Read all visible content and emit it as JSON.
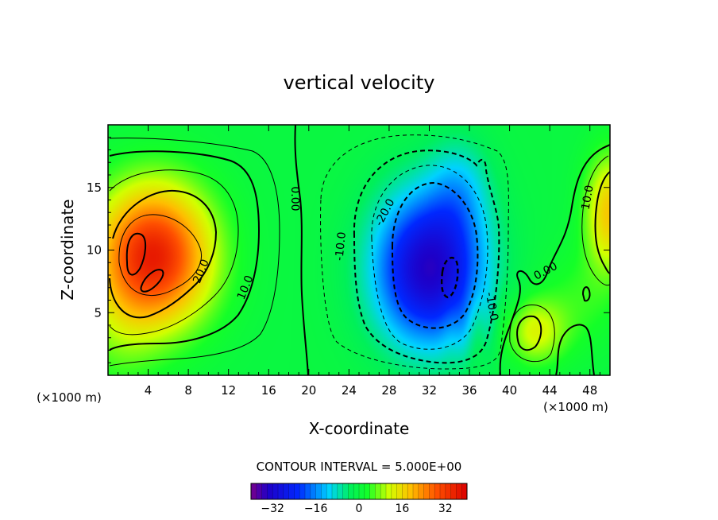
{
  "chart_data": {
    "type": "heatmap",
    "title": "vertical velocity",
    "xlabel": "X-coordinate",
    "ylabel": "Z-coordinate",
    "x_unit_left": "(×1000 m)",
    "x_unit_right": "(×1000 m)",
    "xlim": [
      0,
      50
    ],
    "ylim": [
      0,
      20
    ],
    "x_ticks": [
      4,
      8,
      12,
      16,
      20,
      24,
      28,
      32,
      36,
      40,
      44,
      48
    ],
    "x_tick_labels": [
      "4",
      "8",
      "12",
      "16",
      "20",
      "24",
      "28",
      "32",
      "36",
      "40",
      "44",
      "48"
    ],
    "y_ticks": [
      5,
      10,
      15
    ],
    "y_tick_labels": [
      "5",
      "10",
      "15"
    ],
    "contour_interval_text": "CONTOUR INTERVAL = 5.000E+00",
    "contour_labels": [
      {
        "text": "20.0",
        "x": 9.3,
        "z": 8.3,
        "angle": -68
      },
      {
        "text": "10.0",
        "x": 13.7,
        "z": 7.0,
        "angle": -68
      },
      {
        "text": "0.00",
        "x": 18.6,
        "z": 14.1,
        "angle": 90
      },
      {
        "text": "-10.0",
        "x": 23.2,
        "z": 10.3,
        "angle": -84
      },
      {
        "text": "-20.0",
        "x": 27.6,
        "z": 13.0,
        "angle": -62
      },
      {
        "text": "-10.0",
        "x": 38.2,
        "z": 5.5,
        "angle": 80
      },
      {
        "text": "0.00",
        "x": 43.6,
        "z": 8.3,
        "angle": -28
      },
      {
        "text": "10.0",
        "x": 47.8,
        "z": 14.2,
        "angle": -80
      }
    ],
    "fields": {
      "updraft": {
        "x": 4.5,
        "z": 9.5,
        "amplitude": 36
      },
      "downdraft": {
        "x": 32.0,
        "z": 8.5,
        "amplitude": -34
      },
      "right_edge_updraft": {
        "x": 50.0,
        "z": 13.0,
        "amplitude": 18
      },
      "lower_right_updraft": {
        "x": 42.5,
        "z": 3.5,
        "amplitude": 12
      }
    },
    "colorbar": {
      "range": [
        -40,
        40
      ],
      "tick_values": [
        -32,
        -16,
        0,
        16,
        32
      ],
      "tick_labels": [
        "−32",
        "−16",
        "0",
        "16",
        "32"
      ]
    }
  }
}
